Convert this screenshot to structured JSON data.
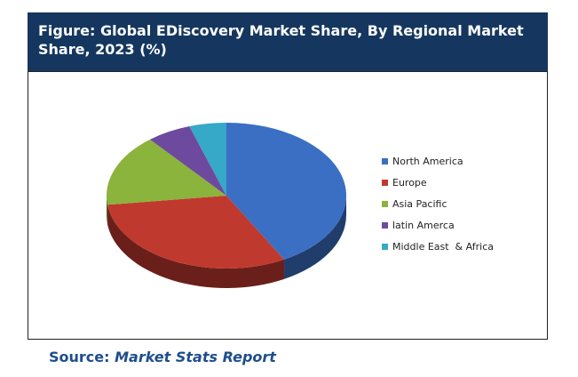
{
  "header": {
    "title": "Figure: Global EDiscovery Market Share, By Regional Market Share, 2023 (%)"
  },
  "source": {
    "label": "Source:",
    "name": "Market Stats Report"
  },
  "chart_data": {
    "type": "pie",
    "title": "",
    "categories": [
      "North America",
      "Europe",
      "Asia Pacific",
      "latin Amerca",
      "Middle East  & Africa"
    ],
    "values": [
      42,
      31,
      16,
      6,
      5
    ],
    "colors": [
      "#3a6fc4",
      "#c0392f",
      "#8ab43c",
      "#6e4a9e",
      "#35a9c7"
    ],
    "legend_position": "right",
    "style": "3d"
  }
}
